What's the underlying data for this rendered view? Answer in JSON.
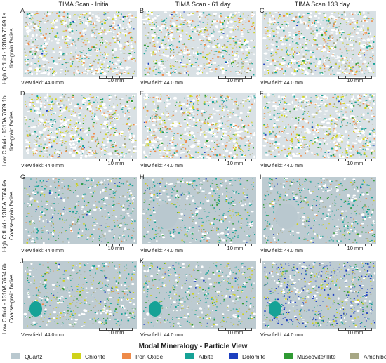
{
  "columns": [
    "TIMA Scan - Initial",
    "TIMA Scan - 61 day",
    "TIMA  Scan 133 day"
  ],
  "rows": [
    {
      "label": "High C fluid - 1310A 7669.1a fine-grain facies",
      "letters": [
        "A",
        "B",
        "C"
      ]
    },
    {
      "label": "Low C fluid - 1310A 7669.1b fine-grain facies",
      "letters": [
        "D",
        "E",
        "F"
      ]
    },
    {
      "label": "High C fluid - 1310A 7684.6a Coarse-grain facies",
      "letters": [
        "G",
        "H",
        "I"
      ]
    },
    {
      "label": "Low C fluid - 1310A 7684.6b Coarse-grain facies",
      "letters": [
        "J",
        "K",
        "L"
      ]
    }
  ],
  "view_field": "View field: 44.0 mm",
  "scale_label": "10 mm",
  "legend_title": "Modal Mineralogy - Particle View",
  "legend": [
    {
      "name": "Quartz",
      "color": "#b9c8cf"
    },
    {
      "name": "Chlorite",
      "color": "#cfd21a"
    },
    {
      "name": "Iron Oxide",
      "color": "#ee8a48"
    },
    {
      "name": "Albite",
      "color": "#16a296"
    },
    {
      "name": "Dolomite",
      "color": "#1c3fbf"
    },
    {
      "name": "Muscovite/Illite",
      "color": "#2f9a33"
    },
    {
      "name": "Amphiboles",
      "color": "#a7a784"
    }
  ]
}
